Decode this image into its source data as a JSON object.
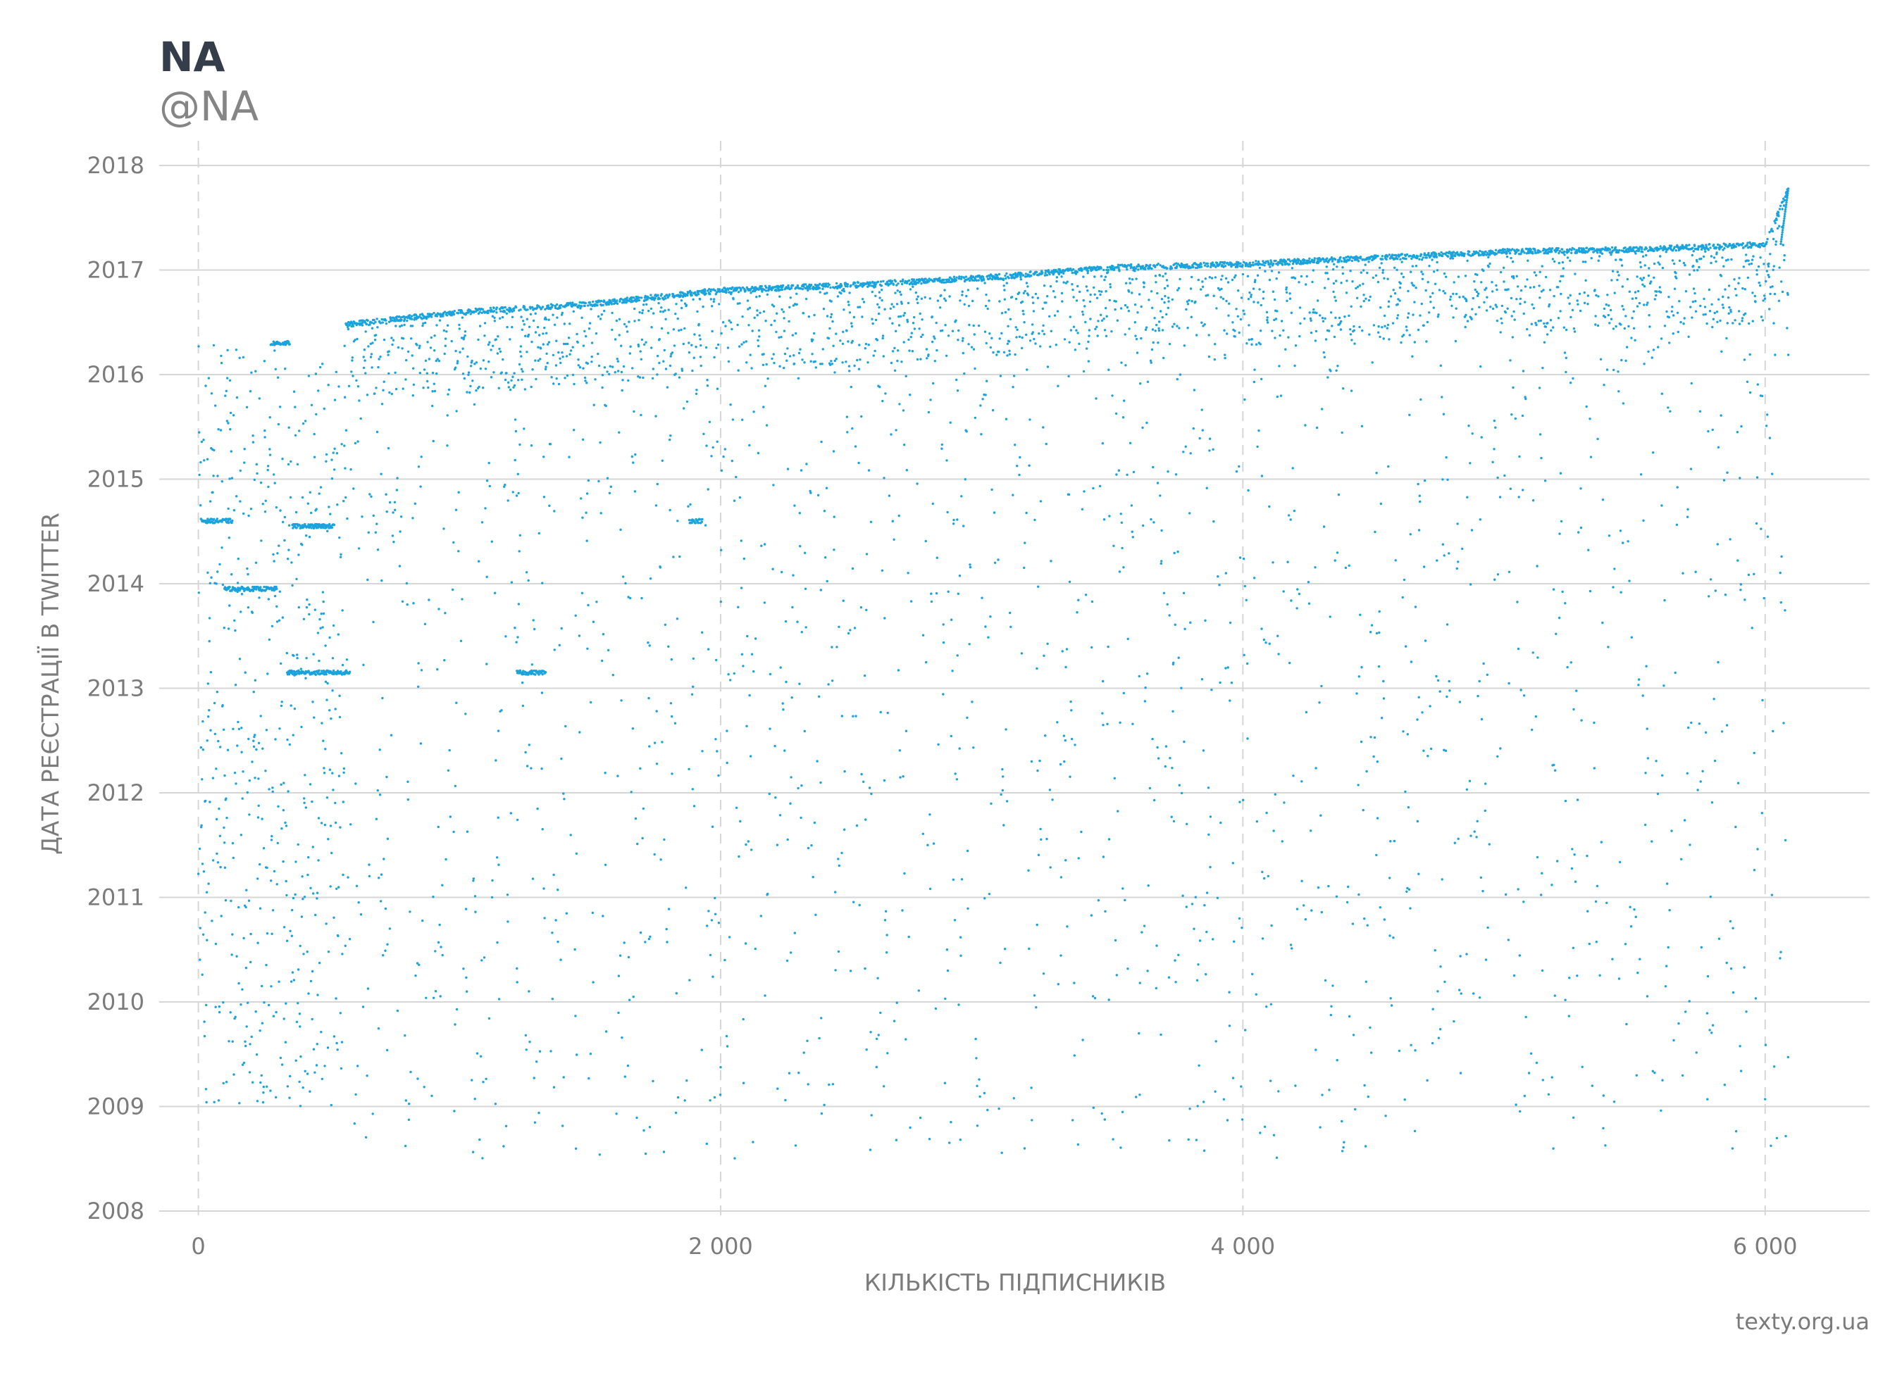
{
  "chart_data": {
    "type": "scatter",
    "title": "NA",
    "subtitle": "@NA",
    "xlabel": "КІЛЬКІСТЬ ПІДПИСНИКІВ",
    "ylabel": "ДАТА РЕЄСТРАЦІЇ В TWITTER",
    "caption": "texty.org.ua",
    "xlim": [
      -150,
      6400
    ],
    "ylim": [
      2008,
      2018
    ],
    "x_ticks": [
      0,
      2000,
      4000,
      6000
    ],
    "x_tick_labels": [
      "0",
      "2 000",
      "4 000",
      "6 000"
    ],
    "y_ticks": [
      2008,
      2009,
      2010,
      2011,
      2012,
      2013,
      2014,
      2015,
      2016,
      2017,
      2018
    ],
    "y_tick_labels": [
      "2008",
      "2009",
      "2010",
      "2011",
      "2012",
      "2013",
      "2014",
      "2015",
      "2016",
      "2017",
      "2018"
    ],
    "grid": {
      "horizontal": "solid",
      "vertical": "dashed"
    },
    "point_color": "#1aa3dd",
    "point_count_estimate": 6100,
    "point_description": "Each follower is one point: x = follower index (0–6090), y = account registration date. Dense band along the upper frontier (~2016.5 rising to ~2017.25), sparse scatter below down to ~2008.4, clusters near x≈0–300 at 2014.6 and 2013.95, x≈350–580 at 2013.15, final spike to ~2017.8 at x≈6090.",
    "frontier": [
      {
        "x": 560,
        "y": 2016.5
      },
      {
        "x": 1000,
        "y": 2016.62
      },
      {
        "x": 1500,
        "y": 2016.7
      },
      {
        "x": 2000,
        "y": 2016.83
      },
      {
        "x": 2500,
        "y": 2016.88
      },
      {
        "x": 3000,
        "y": 2016.95
      },
      {
        "x": 3500,
        "y": 2017.05
      },
      {
        "x": 4000,
        "y": 2017.08
      },
      {
        "x": 4500,
        "y": 2017.14
      },
      {
        "x": 5000,
        "y": 2017.2
      },
      {
        "x": 5500,
        "y": 2017.22
      },
      {
        "x": 6000,
        "y": 2017.27
      },
      {
        "x": 6090,
        "y": 2017.8
      }
    ],
    "clusters": [
      {
        "x_from": 10,
        "x_to": 130,
        "y": 2014.6
      },
      {
        "x_from": 100,
        "x_to": 300,
        "y": 2013.95
      },
      {
        "x_from": 340,
        "x_to": 580,
        "y": 2013.15
      },
      {
        "x_from": 280,
        "x_to": 350,
        "y": 2016.3
      },
      {
        "x_from": 360,
        "x_to": 520,
        "y": 2014.55
      },
      {
        "x_from": 1220,
        "x_to": 1330,
        "y": 2013.15
      },
      {
        "x_from": 1880,
        "x_to": 1930,
        "y": 2014.6
      }
    ]
  }
}
